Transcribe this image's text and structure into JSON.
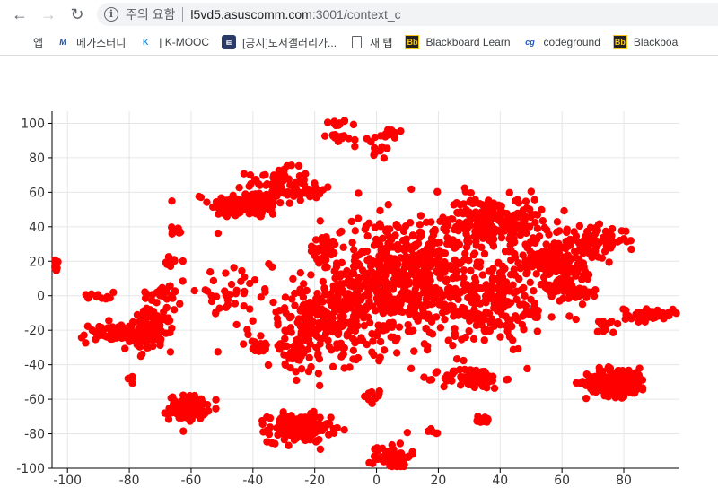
{
  "browser": {
    "url_warning": "주의 요함",
    "url_host": "l5vd5.asuscomm.com",
    "url_path": ":3001/context_c",
    "bookmarks": [
      {
        "label": "앱",
        "icon": "apps-grid-icon"
      },
      {
        "label": "메가스터디",
        "icon": "megastudy-icon"
      },
      {
        "label": "| K-MOOC",
        "icon": "kmooc-icon"
      },
      {
        "label": "[공지]도서갤러리가...",
        "icon": "notice-icon"
      },
      {
        "label": "새 탭",
        "icon": "page-icon"
      },
      {
        "label": "Blackboard Learn",
        "icon": "blackboard-icon"
      },
      {
        "label": "codeground",
        "icon": "codeground-icon"
      },
      {
        "label": "Blackboa",
        "icon": "blackboard-icon"
      }
    ]
  },
  "chart_data": {
    "type": "scatter",
    "title": "",
    "xlabel": "",
    "ylabel": "",
    "xlim": [
      -105,
      98
    ],
    "ylim": [
      -100,
      107
    ],
    "xticks": [
      -100,
      -80,
      -60,
      -40,
      -20,
      0,
      20,
      40,
      60,
      80
    ],
    "yticks": [
      100,
      80,
      60,
      40,
      20,
      0,
      -20,
      -40,
      -60,
      -80,
      -100
    ],
    "grid": true,
    "color": "#ff0000",
    "description_note": "",
    "clusters": [
      {
        "cx": -13,
        "cy": 100,
        "sx": 2,
        "sy": 1,
        "n": 12
      },
      {
        "cx": -13,
        "cy": 92,
        "sx": 2,
        "sy": 1.5,
        "n": 12
      },
      {
        "cx": 5,
        "cy": 94,
        "sx": 2.5,
        "sy": 1.5,
        "n": 14
      },
      {
        "cx": -5,
        "cy": 89,
        "sx": 3,
        "sy": 2,
        "n": 6
      },
      {
        "cx": 2,
        "cy": 83,
        "sx": 2,
        "sy": 2,
        "n": 10
      },
      {
        "cx": -104,
        "cy": 18,
        "sx": 1.5,
        "sy": 2,
        "n": 12
      },
      {
        "cx": -42,
        "cy": 53,
        "sx": 6,
        "sy": 4,
        "n": 140
      },
      {
        "cx": -32,
        "cy": 66,
        "sx": 5,
        "sy": 4,
        "n": 60
      },
      {
        "cx": -22,
        "cy": 60,
        "sx": 4,
        "sy": 3,
        "n": 30
      },
      {
        "cx": -17,
        "cy": 28,
        "sx": 3,
        "sy": 3,
        "n": 25
      },
      {
        "cx": -65,
        "cy": 37,
        "sx": 1.5,
        "sy": 1.5,
        "n": 10
      },
      {
        "cx": -65,
        "cy": 20,
        "sx": 1.5,
        "sy": 1.5,
        "n": 8
      },
      {
        "cx": -90,
        "cy": 0,
        "sx": 2.5,
        "sy": 1,
        "n": 10
      },
      {
        "cx": -86,
        "cy": -22,
        "sx": 5,
        "sy": 3,
        "n": 60
      },
      {
        "cx": -73,
        "cy": -20,
        "sx": 3.5,
        "sy": 6,
        "n": 100
      },
      {
        "cx": -79,
        "cy": -48,
        "sx": 1,
        "sy": 1,
        "n": 6
      },
      {
        "cx": -61,
        "cy": -65,
        "sx": 3,
        "sy": 3.5,
        "n": 120
      },
      {
        "cx": -25,
        "cy": -77,
        "sx": 5,
        "sy": 4,
        "n": 180
      },
      {
        "cx": -38,
        "cy": -30,
        "sx": 2,
        "sy": 2,
        "n": 20
      },
      {
        "cx": 5,
        "cy": -93,
        "sx": 3,
        "sy": 4,
        "n": 70
      },
      {
        "cx": 0,
        "cy": -58,
        "sx": 2,
        "sy": 2,
        "n": 10
      },
      {
        "cx": 31,
        "cy": -48,
        "sx": 5,
        "sy": 3,
        "n": 80
      },
      {
        "cx": 34,
        "cy": -72,
        "sx": 1.5,
        "sy": 1.5,
        "n": 12
      },
      {
        "cx": 19,
        "cy": -78,
        "sx": 1,
        "sy": 1,
        "n": 5
      },
      {
        "cx": 78,
        "cy": -50,
        "sx": 5,
        "sy": 4,
        "n": 200
      },
      {
        "cx": 88,
        "cy": -11,
        "sx": 4,
        "sy": 2,
        "n": 40
      },
      {
        "cx": 64,
        "cy": 2,
        "sx": 4,
        "sy": 3,
        "n": 40
      },
      {
        "cx": 75,
        "cy": -16,
        "sx": 2,
        "sy": 2,
        "n": 12
      },
      {
        "cx": 71,
        "cy": 32,
        "sx": 5,
        "sy": 4,
        "n": 70
      },
      {
        "cx": 58,
        "cy": 20,
        "sx": 6,
        "sy": 7,
        "n": 180
      },
      {
        "cx": 38,
        "cy": 43,
        "sx": 8,
        "sy": 7,
        "n": 220
      },
      {
        "cx": 10,
        "cy": 10,
        "sx": 14,
        "sy": 18,
        "n": 620
      },
      {
        "cx": -15,
        "cy": -12,
        "sx": 12,
        "sy": 12,
        "n": 260
      },
      {
        "cx": 40,
        "cy": -5,
        "sx": 10,
        "sy": 12,
        "n": 150
      },
      {
        "cx": -48,
        "cy": 3,
        "sx": 5,
        "sy": 5,
        "n": 30
      },
      {
        "cx": -70,
        "cy": 0,
        "sx": 4,
        "sy": 3,
        "n": 25
      },
      {
        "cx": -25,
        "cy": -35,
        "sx": 4,
        "sy": 5,
        "n": 35
      }
    ]
  }
}
